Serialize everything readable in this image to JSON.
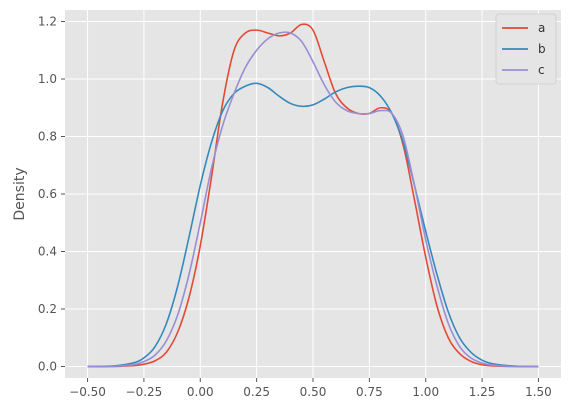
{
  "chart_data": {
    "type": "line",
    "title": "",
    "xlabel": "",
    "ylabel": "Density",
    "xlim": [
      -0.6,
      1.6
    ],
    "ylim": [
      -0.04,
      1.24
    ],
    "xticks": [
      -0.5,
      -0.25,
      0.0,
      0.25,
      0.5,
      0.75,
      1.0,
      1.25,
      1.5
    ],
    "xtick_labels": [
      "−0.50",
      "−0.25",
      "0.00",
      "0.25",
      "0.50",
      "0.75",
      "1.00",
      "1.25",
      "1.50"
    ],
    "yticks": [
      0.0,
      0.2,
      0.4,
      0.6,
      0.8,
      1.0,
      1.2
    ],
    "ytick_labels": [
      "0.0",
      "0.2",
      "0.4",
      "0.6",
      "0.8",
      "1.0",
      "1.2"
    ],
    "grid": true,
    "legend_position": "top-right",
    "x": [
      -0.5,
      -0.4,
      -0.3,
      -0.25,
      -0.2,
      -0.15,
      -0.1,
      -0.05,
      0.0,
      0.05,
      0.1,
      0.15,
      0.2,
      0.25,
      0.3,
      0.35,
      0.4,
      0.45,
      0.5,
      0.55,
      0.6,
      0.65,
      0.7,
      0.75,
      0.8,
      0.85,
      0.9,
      0.95,
      1.0,
      1.05,
      1.1,
      1.15,
      1.2,
      1.25,
      1.3,
      1.4,
      1.5
    ],
    "series": [
      {
        "name": "a",
        "color": "#E24A33",
        "values": [
          0.0,
          0.0,
          0.003,
          0.008,
          0.02,
          0.05,
          0.12,
          0.24,
          0.42,
          0.66,
          0.92,
          1.1,
          1.16,
          1.17,
          1.16,
          1.15,
          1.16,
          1.19,
          1.17,
          1.06,
          0.95,
          0.9,
          0.88,
          0.88,
          0.9,
          0.88,
          0.77,
          0.58,
          0.38,
          0.21,
          0.1,
          0.045,
          0.018,
          0.006,
          0.002,
          0.0,
          0.0
        ]
      },
      {
        "name": "b",
        "color": "#348ABD",
        "values": [
          0.0,
          0.001,
          0.012,
          0.03,
          0.07,
          0.15,
          0.28,
          0.45,
          0.63,
          0.78,
          0.89,
          0.95,
          0.975,
          0.985,
          0.97,
          0.94,
          0.915,
          0.905,
          0.91,
          0.93,
          0.955,
          0.97,
          0.975,
          0.97,
          0.94,
          0.88,
          0.78,
          0.63,
          0.47,
          0.32,
          0.19,
          0.1,
          0.05,
          0.022,
          0.009,
          0.001,
          0.0
        ]
      },
      {
        "name": "c",
        "color": "#988ED5",
        "values": [
          0.0,
          0.0,
          0.006,
          0.017,
          0.04,
          0.09,
          0.18,
          0.32,
          0.5,
          0.69,
          0.84,
          0.95,
          1.04,
          1.1,
          1.14,
          1.16,
          1.16,
          1.13,
          1.06,
          0.98,
          0.92,
          0.89,
          0.88,
          0.88,
          0.89,
          0.88,
          0.8,
          0.63,
          0.44,
          0.28,
          0.15,
          0.07,
          0.03,
          0.012,
          0.004,
          0.0,
          0.0
        ]
      }
    ]
  }
}
